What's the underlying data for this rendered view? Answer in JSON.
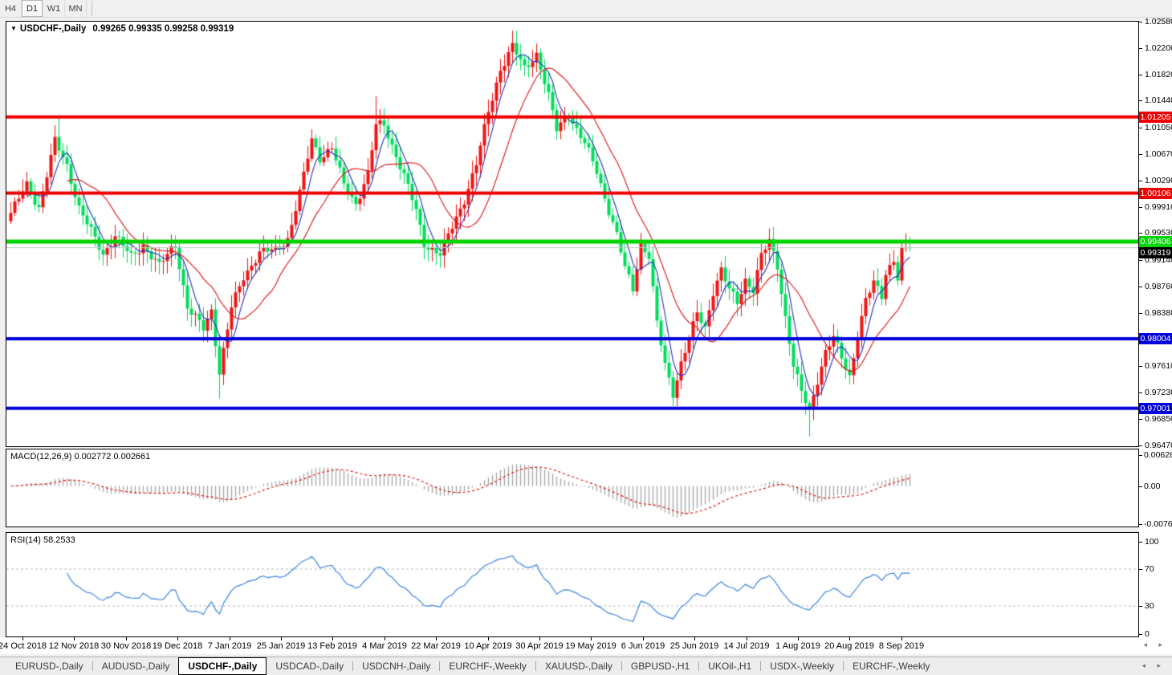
{
  "toolbar": {
    "timeframes": [
      {
        "label": "H4",
        "active": false
      },
      {
        "label": "D1",
        "active": true
      },
      {
        "label": "W1",
        "active": false
      },
      {
        "label": "MN",
        "active": false
      }
    ]
  },
  "chart": {
    "symbol": "USDCHF-,Daily",
    "ohlc_display": "0.99265 0.99335 0.99258 0.99319",
    "dropdown_icon": "▼"
  },
  "macd": {
    "label": "MACD(12,26,9) 0.002772 0.002661"
  },
  "rsi": {
    "label": "RSI(14) 58.2533"
  },
  "date_axis": [
    "24 Oct 2018",
    "12 Nov 2018",
    "30 Nov 2018",
    "19 Dec 2018",
    "7 Jan 2019",
    "25 Jan 2019",
    "13 Feb 2019",
    "4 Mar 2019",
    "22 Mar 2019",
    "10 Apr 2019",
    "30 Apr 2019",
    "19 May 2019",
    "6 Jun 2019",
    "25 Jun 2019",
    "14 Jul 2019",
    "1 Aug 2019",
    "20 Aug 2019",
    "8 Sep 2019"
  ],
  "scroll_arrows": "◂ ▸",
  "tabs": {
    "active_index": 2,
    "items": [
      "EURUSD-,Daily",
      "AUDUSD-,Daily",
      "USDCHF-,Daily",
      "USDCAD-,Daily",
      "USDCNH-,Daily",
      "EURCHF-,Weekly",
      "XAUUSD-,Daily",
      "GBPUSD-,H1",
      "UKOil-,H1",
      "USDX-,Weekly",
      "EURCHF-,Weekly"
    ]
  },
  "chart_data": [
    {
      "type": "candlestick",
      "title": "USDCHF-,Daily",
      "n_candles": 225,
      "ylim": [
        0.96453,
        1.0258
      ],
      "up_color": "#F01414",
      "down_color": "#00DD5C",
      "y_ticks": [
        "1.02580",
        "1.02200",
        "1.01820",
        "1.01440",
        "1.01050",
        "1.00670",
        "1.00290",
        "0.99910",
        "0.99530",
        "0.99140",
        "0.98760",
        "0.98380",
        "0.97610",
        "0.97230",
        "0.96850",
        "0.96470"
      ],
      "levels": [
        {
          "value": 1.01205,
          "label": "1.01205",
          "color": "#EE0000",
          "width": 4
        },
        {
          "value": 1.00106,
          "label": "1.00106",
          "color": "#EE0000",
          "width": 4
        },
        {
          "value": 0.99406,
          "label": "0.99406",
          "color": "#00D400",
          "width": 5
        },
        {
          "value": 0.98004,
          "label": "0.98004",
          "color": "#0000DD",
          "width": 4
        },
        {
          "value": 0.97001,
          "label": "0.97001",
          "color": "#0000DD",
          "width": 4
        }
      ],
      "current_price": {
        "value": 0.99319,
        "label": "0.99319",
        "line_color": "#C4C4C4",
        "tag_bg": "#000000"
      },
      "moving_averages": [
        {
          "type": "sma",
          "period": 5,
          "color": "#2233BB"
        },
        {
          "type": "sma",
          "period": 15,
          "color": "#DD1111"
        }
      ],
      "close_waypoints": [
        [
          0,
          0.9982
        ],
        [
          4,
          1.0022
        ],
        [
          7,
          0.999
        ],
        [
          11,
          1.0085
        ],
        [
          14,
          1.005
        ],
        [
          17,
          0.999
        ],
        [
          20,
          0.9955
        ],
        [
          23,
          0.9922
        ],
        [
          26,
          0.995
        ],
        [
          30,
          0.9918
        ],
        [
          33,
          0.9936
        ],
        [
          37,
          0.9905
        ],
        [
          41,
          0.9938
        ],
        [
          44,
          0.9845
        ],
        [
          48,
          0.9815
        ],
        [
          50,
          0.9842
        ],
        [
          52,
          0.9752
        ],
        [
          55,
          0.9845
        ],
        [
          58,
          0.989
        ],
        [
          62,
          0.9925
        ],
        [
          66,
          0.9928
        ],
        [
          69,
          0.9945
        ],
        [
          72,
          1.001
        ],
        [
          75,
          1.0088
        ],
        [
          77,
          1.0062
        ],
        [
          80,
          1.0076
        ],
        [
          83,
          1.0022
        ],
        [
          86,
          0.9996
        ],
        [
          89,
          1.0038
        ],
        [
          91,
          1.0108
        ],
        [
          93,
          1.011
        ],
        [
          95,
          1.008
        ],
        [
          98,
          1.0035
        ],
        [
          101,
          0.9985
        ],
        [
          103,
          0.9938
        ],
        [
          107,
          0.9922
        ],
        [
          110,
          0.9962
        ],
        [
          113,
          1.0002
        ],
        [
          116,
          1.0052
        ],
        [
          119,
          1.0128
        ],
        [
          122,
          1.019
        ],
        [
          125,
          1.0222
        ],
        [
          128,
          1.019
        ],
        [
          131,
          1.0212
        ],
        [
          134,
          1.015
        ],
        [
          136,
          1.0102
        ],
        [
          139,
          1.0126
        ],
        [
          141,
          1.0102
        ],
        [
          143,
          1.0082
        ],
        [
          146,
          1.0042
        ],
        [
          149,
          0.9986
        ],
        [
          151,
          0.995
        ],
        [
          153,
          0.9902
        ],
        [
          155,
          0.9872
        ],
        [
          157,
          0.9938
        ],
        [
          159,
          0.992
        ],
        [
          161,
          0.9822
        ],
        [
          163,
          0.9762
        ],
        [
          165,
          0.9722
        ],
        [
          167,
          0.9766
        ],
        [
          169,
          0.98
        ],
        [
          171,
          0.9836
        ],
        [
          173,
          0.9816
        ],
        [
          175,
          0.987
        ],
        [
          177,
          0.99
        ],
        [
          179,
          0.987
        ],
        [
          181,
          0.9852
        ],
        [
          183,
          0.9886
        ],
        [
          185,
          0.9872
        ],
        [
          187,
          0.992
        ],
        [
          189,
          0.994
        ],
        [
          191,
          0.9906
        ],
        [
          193,
          0.9832
        ],
        [
          195,
          0.9762
        ],
        [
          197,
          0.9722
        ],
        [
          199,
          0.9696
        ],
        [
          201,
          0.9742
        ],
        [
          203,
          0.9782
        ],
        [
          205,
          0.9802
        ],
        [
          207,
          0.9772
        ],
        [
          209,
          0.9746
        ],
        [
          211,
          0.9806
        ],
        [
          213,
          0.9856
        ],
        [
          215,
          0.988
        ],
        [
          217,
          0.9862
        ],
        [
          218,
          0.9896
        ],
        [
          220,
          0.9916
        ],
        [
          221,
          0.9888
        ],
        [
          222,
          0.9926
        ],
        [
          224,
          0.99319
        ]
      ],
      "wick_overrides": {
        "12": {
          "high": 1.0123
        },
        "52": {
          "low": 0.9714
        },
        "91": {
          "high": 1.015
        },
        "125": {
          "high": 1.0245
        },
        "199": {
          "low": 0.9659
        },
        "223": {
          "high": 0.9953
        }
      }
    },
    {
      "type": "bar",
      "name": "MACD(12,26,9)",
      "params": {
        "fast": 12,
        "slow": 26,
        "signal": 9
      },
      "current_values": [
        0.002772,
        0.002661
      ],
      "ylim": [
        -0.0083,
        0.0079
      ],
      "y_ticks": [
        {
          "v": 0.006286,
          "label": "0.006286"
        },
        {
          "v": 0,
          "label": "0.00"
        },
        {
          "v": -0.00762,
          "label": "-0.00762"
        }
      ],
      "histogram_color": "#ABABAB",
      "signal_color": "#DD1111",
      "signal_style": "dashed",
      "derived_from": "price_closes"
    },
    {
      "type": "line",
      "name": "RSI(14)",
      "period": 14,
      "current_value": 58.2533,
      "ylim": [
        0,
        100
      ],
      "y_ticks": [
        {
          "v": 100,
          "label": "100"
        },
        {
          "v": 70,
          "label": "70"
        },
        {
          "v": 30,
          "label": "30"
        },
        {
          "v": 0,
          "label": "0"
        }
      ],
      "dashed_levels": [
        70,
        30
      ],
      "line_color": "#3D85DE",
      "derived_from": "price_closes"
    }
  ]
}
